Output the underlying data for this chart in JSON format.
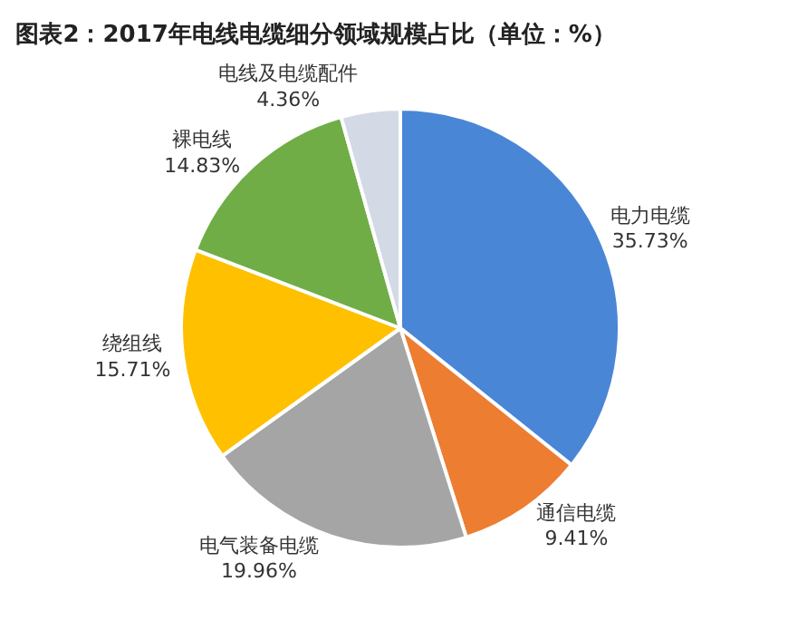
{
  "chart_data": {
    "type": "pie",
    "title": "图表2：2017年电线电缆细分领域规模占比（单位：%）",
    "categories": [
      "电力电缆",
      "通信电缆",
      "电气装备电缆",
      "绕组线",
      "裸电线",
      "电线及电缆配件"
    ],
    "values": [
      35.73,
      9.41,
      19.96,
      15.71,
      14.83,
      4.36
    ],
    "value_labels": [
      "35.73%",
      "9.41%",
      "19.96%",
      "15.71%",
      "14.83%",
      "4.36%"
    ],
    "colors": [
      "#4a86d6",
      "#ed7d31",
      "#a5a5a5",
      "#ffc000",
      "#70ad47",
      "#d3dae6"
    ],
    "legend": false
  }
}
